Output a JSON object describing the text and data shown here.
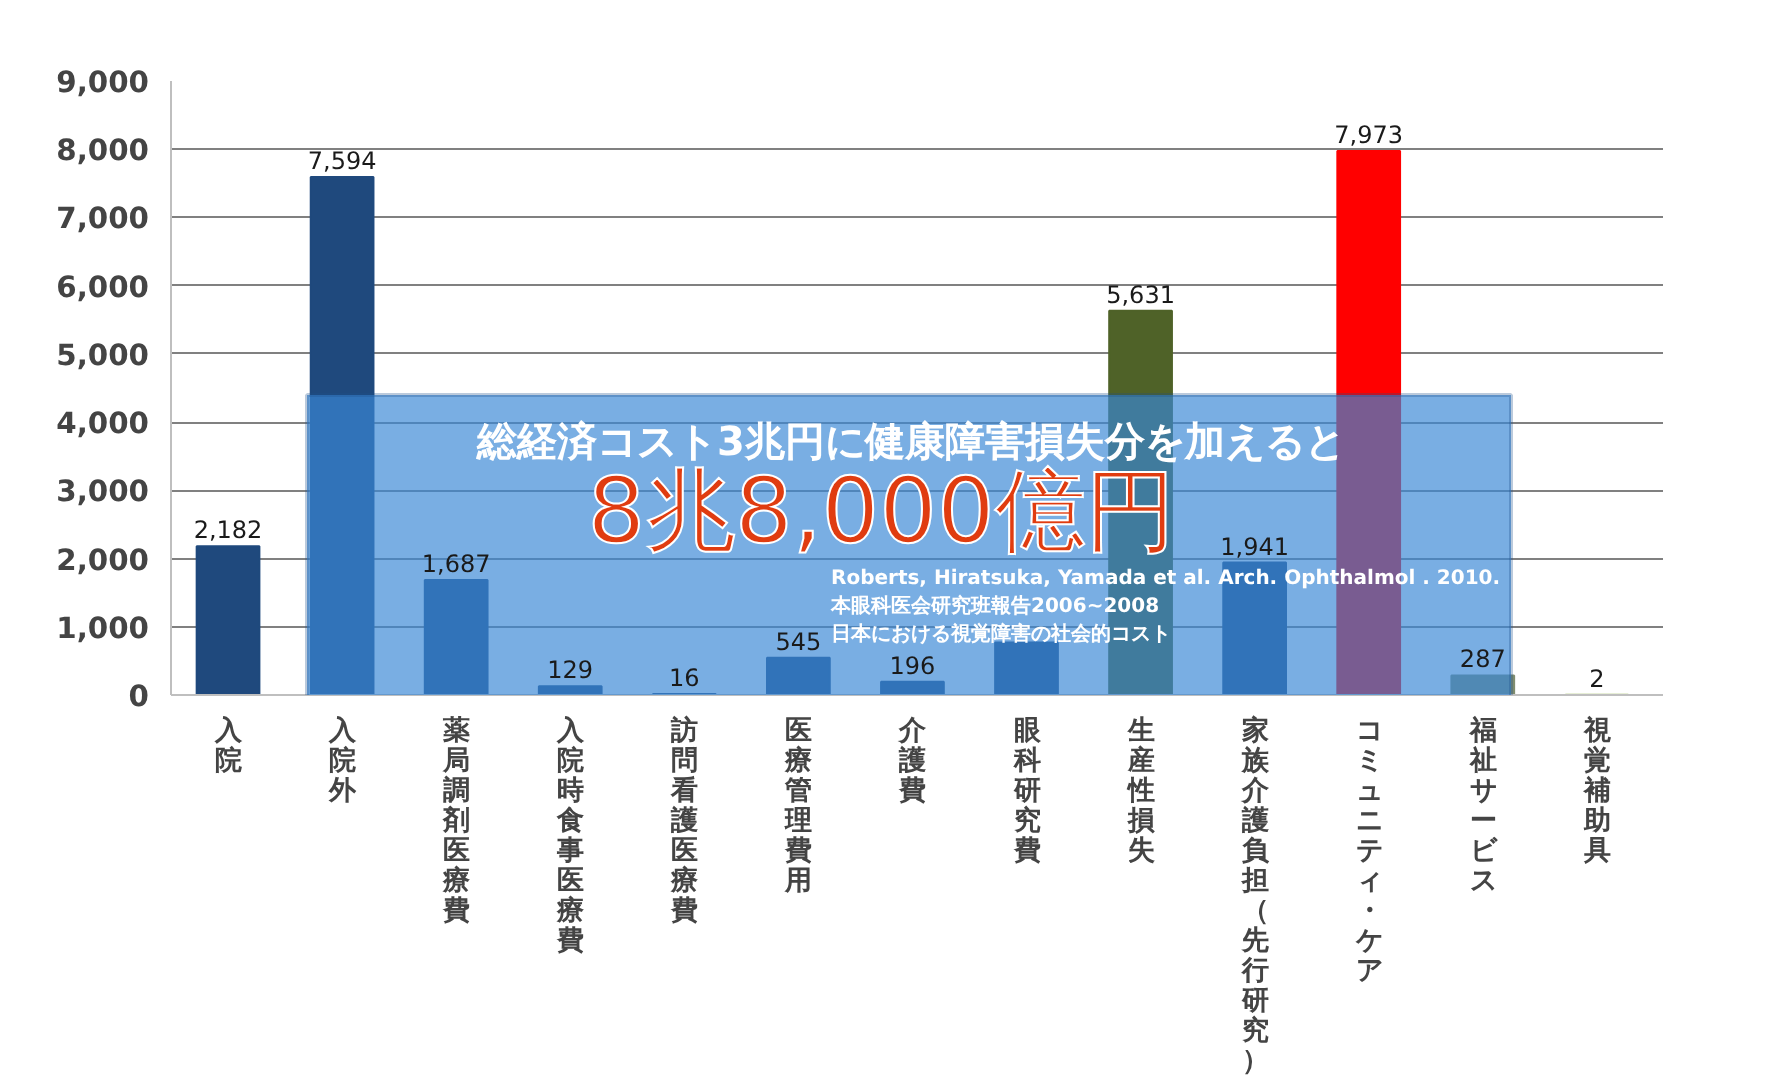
{
  "chart_data": {
    "type": "bar",
    "categories": [
      "入院",
      "入院外",
      "薬局調剤医療費",
      "入院時食事医療費",
      "訪問看護医療費",
      "医療管理費用",
      "介護費",
      "眼科研究費",
      "生産性損失",
      "家族介護負担（先行研究）",
      "コミュニティ・ケア",
      "福祉サービス",
      "視覚補助具"
    ],
    "values": [
      2182,
      7594,
      1687,
      129,
      16,
      545,
      196,
      770,
      5631,
      1941,
      7973,
      287,
      2
    ],
    "colors": [
      "#1f497d",
      "#1f497d",
      "#1f497d",
      "#1f497d",
      "#1f497d",
      "#1f497d",
      "#1f497d",
      "#1f497d",
      "#4f6228",
      "#1f497d",
      "#ff0000",
      "#7f8c6f",
      "#9bbb59"
    ],
    "value_labels": [
      "2,182",
      "7,594",
      "1,687",
      "129",
      "16",
      "545",
      "196",
      null,
      "5,631",
      "1,941",
      "7,973",
      "287",
      "2"
    ],
    "ylim": [
      0,
      9000
    ],
    "yticks": [
      0,
      {
        "value": 1000,
        "label": "1,000"
      },
      {
        "value": 2000,
        "label": "2,000"
      },
      {
        "value": 3000,
        "label": "3,000"
      },
      {
        "value": 4000,
        "label": "4,000"
      },
      {
        "value": 5000,
        "label": "5,000"
      },
      {
        "value": 6000,
        "label": "6,000"
      },
      {
        "value": 7000,
        "label": "7,000"
      },
      {
        "value": 8000,
        "label": "8,000"
      },
      {
        "value": 9000,
        "label": "9,000"
      }
    ],
    "grid": "y",
    "annotations": [
      "総経済コスト3兆円に健康障害損失分を加えると",
      "8兆8,000億円",
      "Roberts, Hiratsuka, Yamada et al.  Arch. Ophthalmol . 2010.",
      "本眼科医会研究班報告2006~2008",
      "日本における視覚障害の社会的コスト"
    ]
  }
}
